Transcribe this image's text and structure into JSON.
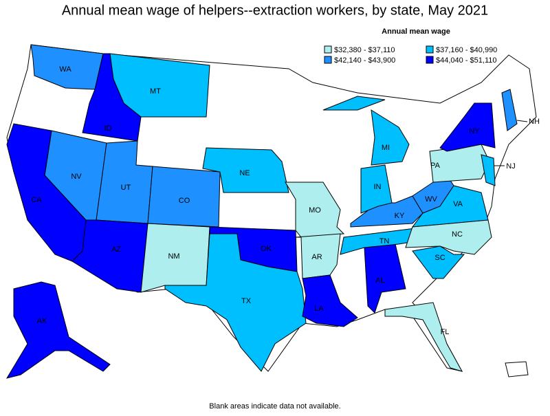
{
  "title": "Annual mean wage of helpers--extraction workers, by state, May 2021",
  "legend": {
    "title": "Annual mean wage",
    "items": [
      {
        "label": "$32,380 - $37,110",
        "color": "#aeeeee",
        "states": [
          "PA",
          "MO",
          "NM",
          "AR",
          "NC",
          "FL"
        ]
      },
      {
        "label": "$37,160 - $40,990",
        "color": "#00bfff",
        "states": [
          "MT",
          "NE",
          "MI",
          "IN",
          "VA",
          "TN",
          "SC",
          "TX",
          "NJ"
        ]
      },
      {
        "label": "$42,140 - $43,900",
        "color": "#1e90ff",
        "states": [
          "WA",
          "NV",
          "UT",
          "CO",
          "KY",
          "WV",
          "NH"
        ]
      },
      {
        "label": "$44,040 - $51,110",
        "color": "#0000ff",
        "states": [
          "ID",
          "CA",
          "AZ",
          "OK",
          "LA",
          "AL",
          "NY",
          "AK"
        ]
      }
    ]
  },
  "note": "Blank areas indicate data not available."
}
